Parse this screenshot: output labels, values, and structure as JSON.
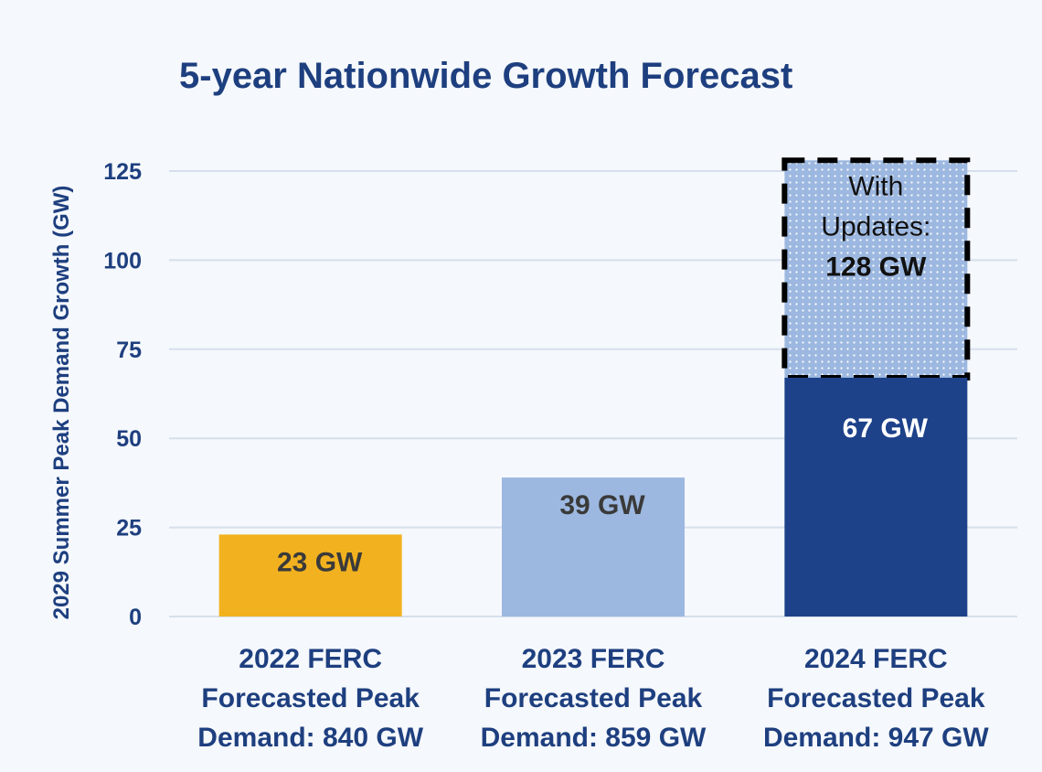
{
  "chart_data": {
    "type": "bar",
    "title": "5-year Nationwide Growth Forecast",
    "xlabel": "",
    "ylabel": "2029 Summer Peak Demand Growth (GW)",
    "ylim": [
      0,
      130
    ],
    "yticks": [
      0,
      25,
      50,
      75,
      100,
      125
    ],
    "grid": true,
    "categories": [
      [
        "2022 FERC",
        "Forecasted Peak",
        "Demand: 840 GW"
      ],
      [
        "2023 FERC",
        "Forecasted Peak",
        "Demand: 859 GW"
      ],
      [
        "2024 FERC",
        "Forecasted Peak",
        "Demand: 947 GW"
      ]
    ],
    "values": [
      23,
      39,
      67
    ],
    "data_labels": [
      "23 GW",
      "39 GW",
      "67 GW"
    ],
    "colors": [
      "#f2b21f",
      "#9db8e0",
      "#1d428a"
    ],
    "label_colors": [
      "#3a3a3a",
      "#3a3a3a",
      "#ffffff"
    ],
    "stacked_update": {
      "category_index": 2,
      "total": 128,
      "label": [
        "With",
        "Updates:",
        "128 GW"
      ],
      "fill": "#9db8e0",
      "pattern": "dotted",
      "border": "dashed black"
    }
  }
}
